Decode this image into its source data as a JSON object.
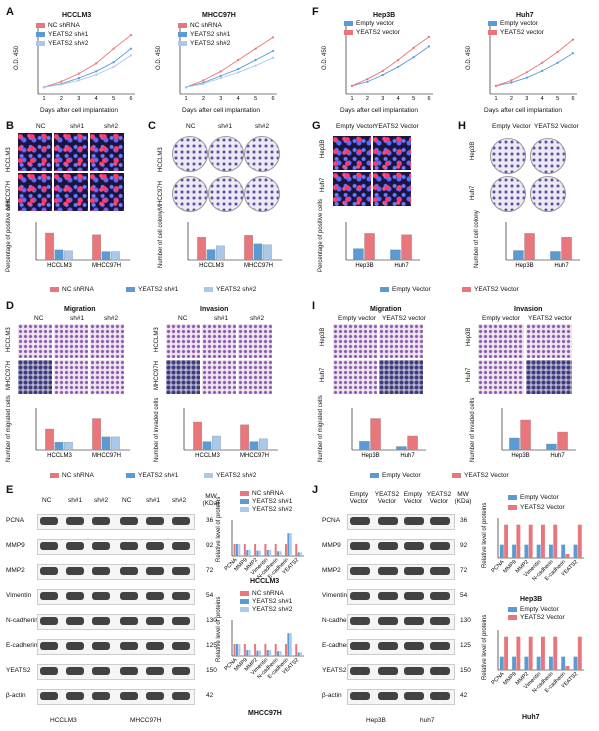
{
  "panels": {
    "A": {
      "letter": "A",
      "title1": "HCCLM3",
      "title2": "MHCC97H",
      "ylabel": "O.D. 450",
      "xlabel": "Days after cell implantation",
      "legend": [
        "NC shRNA",
        "YEATS2 sh#1",
        "YEATS2 sh#2"
      ],
      "sig": [
        "**",
        "***"
      ],
      "yticks": [
        "0.0",
        "0.5",
        "1.0",
        "1.5",
        "2.0",
        "2.5"
      ]
    },
    "F": {
      "letter": "F",
      "title1": "Hep3B",
      "title2": "Huh7",
      "ylabel": "O.D. 450",
      "xlabel": "Days after cell implantation",
      "legend": [
        "Empty vector",
        "YEATS2 vector"
      ],
      "sig": [
        "**",
        "*"
      ]
    },
    "B": {
      "letter": "B",
      "cols": [
        "NC",
        "sh#1",
        "sh#2"
      ],
      "rows": [
        "HCCLM3",
        "MHCC97H"
      ],
      "ylabel": "Percentage of positive cells",
      "groups": [
        "HCCLM3",
        "MHCC97H"
      ],
      "legend": [
        "NC shRNA",
        "YEATS2 sh#1",
        "YEATS2 sh#2"
      ]
    },
    "C": {
      "letter": "C",
      "cols": [
        "NC",
        "sh#1",
        "sh#2"
      ],
      "rows": [
        "HCCLM3",
        "MHCC97H"
      ],
      "ylabel": "Number of cell colony",
      "groups": [
        "HCCLM3",
        "MHCC97H"
      ]
    },
    "G": {
      "letter": "G",
      "cols": [
        "Empty Vector",
        "YEATS2 Vector"
      ],
      "rows": [
        "Hep3B",
        "Huh7"
      ],
      "ylabel": "Percentage of positive cells",
      "groups": [
        "Hep3B",
        "Huh7"
      ],
      "legend": [
        "Empty Vector",
        "YEATS2 Vector"
      ]
    },
    "H": {
      "letter": "H",
      "cols": [
        "Empty Vector",
        "YEATS2 Vector"
      ],
      "rows": [
        "Hep3B",
        "Huh7"
      ],
      "ylabel": "Number of cell colony",
      "groups": [
        "Hep3B",
        "Huh7"
      ]
    },
    "D": {
      "letter": "D",
      "mig": "Migration",
      "inv": "Invasion",
      "cols": [
        "NC",
        "sh#1",
        "sh#2"
      ],
      "rows": [
        "HCCLM3",
        "MHCC97H"
      ],
      "ylab_mig": "Number of migrated cells",
      "ylab_inv": "Number of invaded cells",
      "groups": [
        "HCCLM3",
        "MHCC97H"
      ],
      "legend": [
        "NC shRNA",
        "YEATS2 sh#1",
        "YEATS2 sh#2"
      ]
    },
    "I": {
      "letter": "I",
      "mig": "Migration",
      "inv": "Invasion",
      "cols": [
        "Empty vector",
        "YEATS2 vector"
      ],
      "rows": [
        "Hep3B",
        "Huh7"
      ],
      "ylab_mig": "Number of migrated cells",
      "ylab_inv": "Number of invaded cells",
      "groups": [
        "Hep3B",
        "Huh7"
      ],
      "legend": [
        "Empty Vector",
        "YEATS2 Vector"
      ]
    },
    "E": {
      "letter": "E",
      "cols": [
        "NC",
        "sh#1",
        "sh#2",
        "NC",
        "sh#1",
        "sh#2"
      ],
      "mw": "MW (KDa)",
      "proteins": [
        "PCNA",
        "MMP9",
        "MMP2",
        "Vimentin",
        "N-cadherin",
        "E-cadherin",
        "YEATS2",
        "β-actin"
      ],
      "weights": [
        "36",
        "92",
        "72",
        "54",
        "130",
        "125",
        "150",
        "42"
      ],
      "cells": [
        "HCCLM3",
        "MHCC97H"
      ],
      "chart1_title": "HCCLM3",
      "chart2_title": "MHCC97H",
      "ylabel": "Relative level of proteins",
      "legend": [
        "NC shRNA",
        "YEATS2 sh#1",
        "YEATS2 sh#2"
      ],
      "xcats": [
        "PCNA",
        "MMP9",
        "MMP2",
        "Vimentin",
        "N-cadherin",
        "E-cadherin",
        "YEATS2"
      ]
    },
    "J": {
      "letter": "J",
      "cols": [
        "Empty Vector",
        "YEATS2 Vector",
        "Empty Vector",
        "YEATS2 Vector"
      ],
      "mw": "MW (KDa)",
      "proteins": [
        "PCNA",
        "MMP9",
        "MMP2",
        "Vimentin",
        "N-cadherin",
        "E-cadherin",
        "YEATS2",
        "β-actin"
      ],
      "weights": [
        "36",
        "92",
        "72",
        "54",
        "130",
        "125",
        "150",
        "42"
      ],
      "cells": [
        "Hep3B",
        "huh7"
      ],
      "chart1_title": "Hep3B",
      "chart2_title": "Huh7",
      "ylabel": "Relative level of proteins",
      "legend": [
        "Empty Vector",
        "YEATS2 Vector"
      ],
      "xcats": [
        "PCNA",
        "MMP9",
        "MMP2",
        "Vimentin",
        "N-cadherin",
        "E-cadherin",
        "YEATS2"
      ]
    }
  },
  "colors": {
    "red": "#e8767a",
    "blue": "#5b9bd5",
    "hatch": "#a9c9ea",
    "grey": "#8ea9c9"
  },
  "chart_data": [
    {
      "type": "line",
      "panel": "A-HCCLM3",
      "x": [
        1,
        2,
        3,
        4,
        5,
        6
      ],
      "series": [
        {
          "name": "NC shRNA",
          "values": [
            0.3,
            0.55,
            0.9,
            1.35,
            2.0,
            2.6
          ]
        },
        {
          "name": "YEATS2 sh#1",
          "values": [
            0.3,
            0.45,
            0.7,
            1.0,
            1.4,
            2.0
          ]
        },
        {
          "name": "YEATS2 sh#2",
          "values": [
            0.3,
            0.42,
            0.6,
            0.85,
            1.2,
            1.7
          ]
        }
      ],
      "ylim": [
        0,
        3
      ]
    },
    {
      "type": "line",
      "panel": "A-MHCC97H",
      "x": [
        1,
        2,
        3,
        4,
        5,
        6
      ],
      "series": [
        {
          "name": "NC shRNA",
          "values": [
            0.3,
            0.6,
            1.0,
            1.5,
            2.0,
            2.5
          ]
        },
        {
          "name": "YEATS2 sh#1",
          "values": [
            0.3,
            0.5,
            0.8,
            1.1,
            1.5,
            1.9
          ]
        },
        {
          "name": "YEATS2 sh#2",
          "values": [
            0.3,
            0.45,
            0.7,
            0.95,
            1.25,
            1.6
          ]
        }
      ],
      "ylim": [
        0,
        3
      ]
    },
    {
      "type": "line",
      "panel": "F-Hep3B",
      "x": [
        1,
        2,
        3,
        4,
        5,
        6
      ],
      "series": [
        {
          "name": "Empty vector",
          "values": [
            0.3,
            0.45,
            0.7,
            1.0,
            1.35,
            1.75
          ]
        },
        {
          "name": "YEATS2 vector",
          "values": [
            0.3,
            0.55,
            0.85,
            1.25,
            1.7,
            2.1
          ]
        }
      ],
      "ylim": [
        0,
        2.5
      ]
    },
    {
      "type": "line",
      "panel": "F-Huh7",
      "x": [
        1,
        2,
        3,
        4,
        5,
        6
      ],
      "series": [
        {
          "name": "Empty vector",
          "values": [
            0.3,
            0.42,
            0.6,
            0.85,
            1.15,
            1.5
          ]
        },
        {
          "name": "YEATS2 vector",
          "values": [
            0.3,
            0.5,
            0.8,
            1.15,
            1.55,
            2.0
          ]
        }
      ],
      "ylim": [
        0,
        2.5
      ]
    },
    {
      "type": "bar",
      "panel": "B",
      "categories": [
        "HCCLM3",
        "MHCC97H"
      ],
      "series": [
        {
          "name": "NC shRNA",
          "values": [
            32,
            30
          ]
        },
        {
          "name": "YEATS2 sh#1",
          "values": [
            12,
            10
          ]
        },
        {
          "name": "YEATS2 sh#2",
          "values": [
            11,
            10
          ]
        }
      ],
      "ylim": [
        0,
        45
      ]
    },
    {
      "type": "bar",
      "panel": "C",
      "categories": [
        "HCCLM3",
        "MHCC97H"
      ],
      "series": [
        {
          "name": "NC shRNA",
          "values": [
            240,
            260
          ]
        },
        {
          "name": "YEATS2 sh#1",
          "values": [
            110,
            170
          ]
        },
        {
          "name": "YEATS2 sh#2",
          "values": [
            150,
            160
          ]
        }
      ],
      "ylim": [
        0,
        400
      ]
    },
    {
      "type": "bar",
      "panel": "G",
      "categories": [
        "Hep3B",
        "Huh7"
      ],
      "series": [
        {
          "name": "Empty Vector",
          "values": [
            18,
            16
          ]
        },
        {
          "name": "YEATS2 Vector",
          "values": [
            42,
            40
          ]
        }
      ],
      "ylim": [
        0,
        60
      ]
    },
    {
      "type": "bar",
      "panel": "H",
      "categories": [
        "Hep3B",
        "Huh7"
      ],
      "series": [
        {
          "name": "Empty Vector",
          "values": [
            50,
            45
          ]
        },
        {
          "name": "YEATS2 Vector",
          "values": [
            140,
            120
          ]
        }
      ],
      "ylim": [
        0,
        200
      ]
    },
    {
      "type": "bar",
      "panel": "D-mig",
      "categories": [
        "HCCLM3",
        "MHCC97H"
      ],
      "series": [
        {
          "name": "NC shRNA",
          "values": [
            40,
            60
          ]
        },
        {
          "name": "YEATS2 sh#1",
          "values": [
            15,
            25
          ]
        },
        {
          "name": "YEATS2 sh#2",
          "values": [
            15,
            25
          ]
        }
      ],
      "ylim": [
        0,
        80
      ]
    },
    {
      "type": "bar",
      "panel": "D-inv",
      "categories": [
        "HCCLM3",
        "MHCC97H"
      ],
      "series": [
        {
          "name": "NC shRNA",
          "values": [
            100,
            90
          ]
        },
        {
          "name": "YEATS2 sh#1",
          "values": [
            30,
            30
          ]
        },
        {
          "name": "YEATS2 sh#2",
          "values": [
            50,
            40
          ]
        }
      ],
      "ylim": [
        0,
        150
      ]
    },
    {
      "type": "bar",
      "panel": "I-mig",
      "categories": [
        "Hep3B",
        "Huh7"
      ],
      "series": [
        {
          "name": "Empty Vector",
          "values": [
            25,
            10
          ]
        },
        {
          "name": "YEATS2 Vector",
          "values": [
            90,
            40
          ]
        }
      ],
      "ylim": [
        0,
        120
      ]
    },
    {
      "type": "bar",
      "panel": "I-inv",
      "categories": [
        "Hep3B",
        "Huh7"
      ],
      "series": [
        {
          "name": "Empty Vector",
          "values": [
            20,
            10
          ]
        },
        {
          "name": "YEATS2 Vector",
          "values": [
            50,
            30
          ]
        }
      ],
      "ylim": [
        0,
        70
      ]
    }
  ]
}
